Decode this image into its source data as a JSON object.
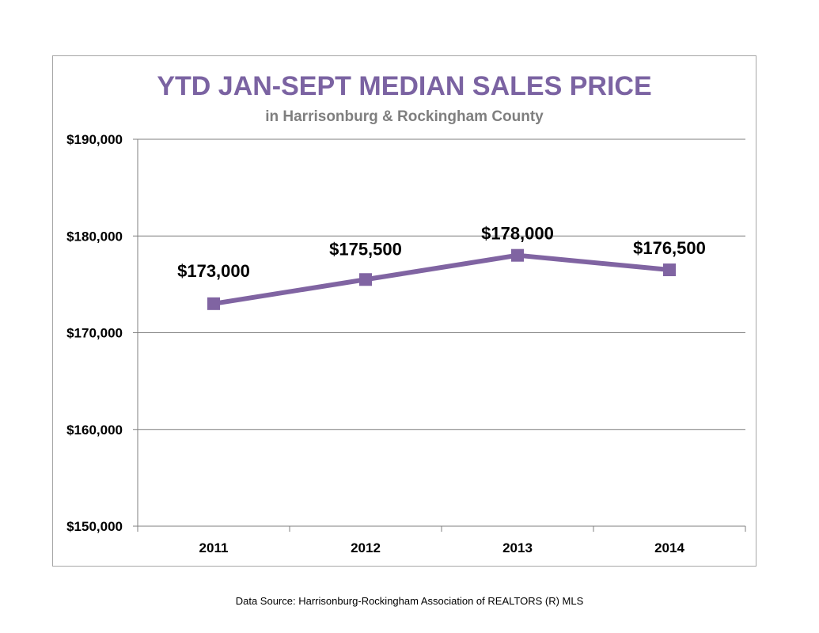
{
  "colors": {
    "series": "#8064a2",
    "title": "#7b63a2",
    "subtitle": "#7f7f7f",
    "gridline": "#7f7f7f",
    "frame": "#a6a6a6"
  },
  "chart_data": {
    "type": "line",
    "title": "YTD JAN-SEPT MEDIAN SALES PRICE",
    "subtitle": "in Harrisonburg  & Rockingham County",
    "xlabel": "",
    "ylabel": "",
    "categories": [
      "2011",
      "2012",
      "2013",
      "2014"
    ],
    "series": [
      {
        "values": [
          173000,
          175500,
          178000,
          176500
        ],
        "labels": [
          "$173,000",
          "$175,500",
          "$178,000",
          "$176,500"
        ],
        "marker": "square"
      }
    ],
    "ylim": [
      150000,
      190000
    ],
    "yticks": [
      150000,
      160000,
      170000,
      180000,
      190000
    ],
    "ytick_labels": [
      "$150,000",
      "$160,000",
      "$170,000",
      "$180,000",
      "$190,000"
    ],
    "grid": true,
    "legend": "none"
  },
  "footer": {
    "source": "Data Source: Harrisonburg-Rockingham Association of REALTORS (R) MLS"
  }
}
